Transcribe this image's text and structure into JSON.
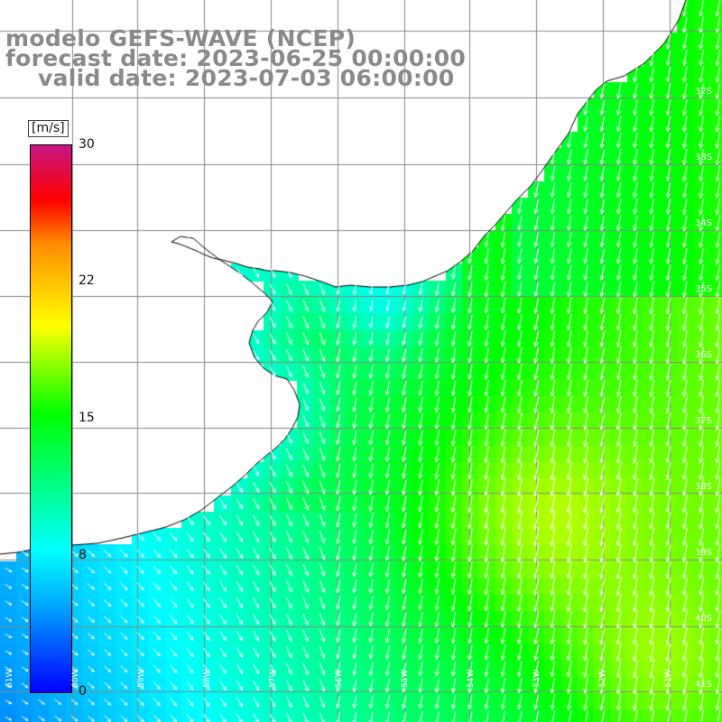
{
  "title": {
    "line1": "modelo GEFS-WAVE (NCEP)",
    "line2": "forecast date: 2023-06-25 00:00:00",
    "line3": "valid date: 2023-07-03 06:00:00"
  },
  "legend": {
    "unit": "[m/s]",
    "ticks": [
      "30",
      "22",
      "15",
      "8",
      "0"
    ],
    "colors": {
      "low": "#0000ff",
      "mid_low": "#00ffff",
      "mid": "#00ff00",
      "mid_high": "#ffff00",
      "high": "#ff8c00",
      "higher": "#ff0000",
      "max": "#c71585"
    }
  },
  "map": {
    "lat_labels": [
      "32S",
      "33S",
      "34S",
      "35S",
      "36S",
      "37S",
      "38S",
      "39S",
      "40S",
      "41S"
    ],
    "lon_labels": [
      "61W",
      "60W",
      "59W",
      "58W",
      "57W",
      "56W",
      "55W",
      "54W",
      "53W",
      "52W",
      "51W"
    ],
    "land_color": "#ffffff",
    "grid_color": "#888888",
    "arrow_color": "#ffffff"
  }
}
